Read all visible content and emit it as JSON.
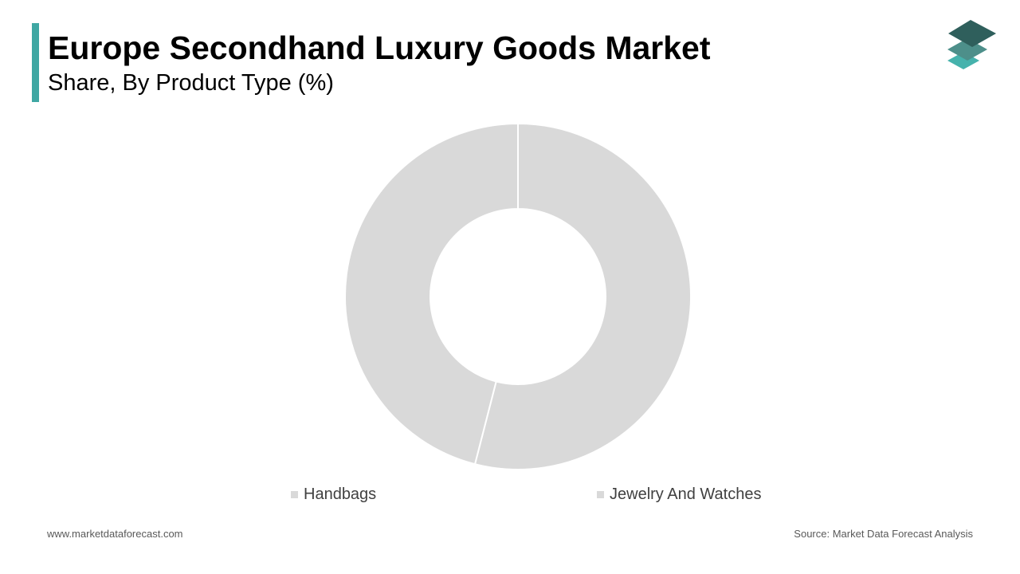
{
  "header": {
    "title": "Europe Secondhand Luxury Goods Market",
    "subtitle": "Share, By Product Type (%)"
  },
  "chart_data": {
    "type": "pie",
    "title": "Europe Secondhand Luxury Goods Market",
    "subtitle": "Share, By Product Type (%)",
    "donut": true,
    "categories": [
      "Handbags",
      "Jewelry And Watches"
    ],
    "values": [
      54,
      46
    ],
    "colors": [
      "#d9d9d9",
      "#d9d9d9"
    ],
    "legend_position": "bottom"
  },
  "legend": {
    "items": [
      {
        "label": "Handbags",
        "color": "#d9d9d9"
      },
      {
        "label": "Jewelry And Watches",
        "color": "#d9d9d9"
      }
    ]
  },
  "footer": {
    "website": "www.marketdataforecast.com",
    "source": "Source: Market Data Forecast Analysis"
  },
  "colors": {
    "accent": "#3fa7a3",
    "logo_dark": "#2f5f5c",
    "logo_mid": "#4d8f8a",
    "logo_light": "#46b2ac"
  },
  "icons": {
    "logo": "stacked-layers-logo-icon"
  }
}
